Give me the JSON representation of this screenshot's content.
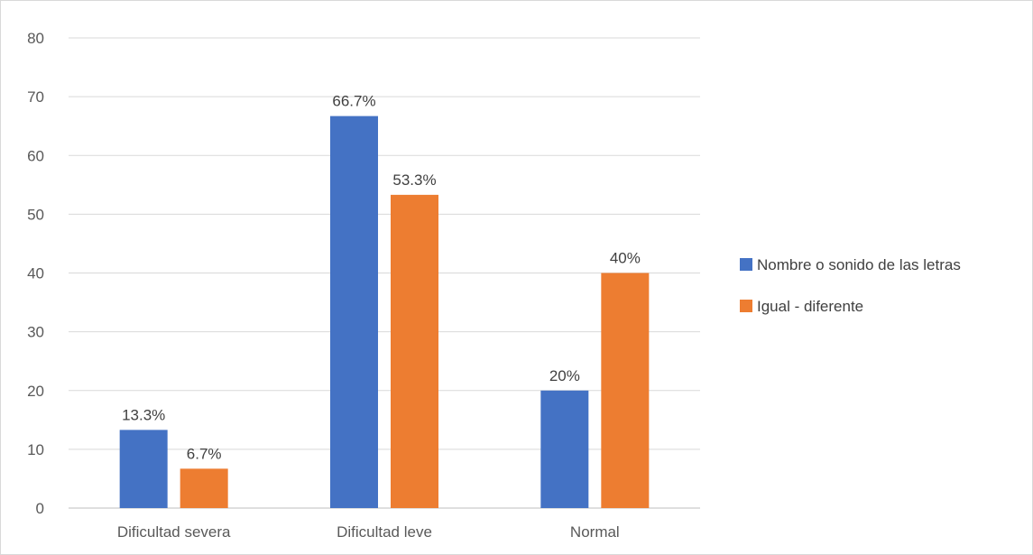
{
  "chart_data": {
    "type": "bar",
    "title": "",
    "xlabel": "",
    "ylabel": "",
    "categories": [
      "Dificultad severa",
      "Dificultad leve",
      "Normal"
    ],
    "ylim": [
      0,
      80
    ],
    "yticks": [
      0,
      10,
      20,
      30,
      40,
      50,
      60,
      70,
      80
    ],
    "grid": true,
    "legend_position": "right",
    "series": [
      {
        "name": "Nombre o sonido de las letras",
        "color": "#4472C4",
        "values": [
          13.3,
          66.7,
          20
        ],
        "labels": [
          "13.3%",
          "66.7%",
          "20%"
        ]
      },
      {
        "name": "Igual - diferente",
        "color": "#ED7D31",
        "values": [
          6.7,
          53.3,
          40
        ],
        "labels": [
          "6.7%",
          "53.3%",
          "40%"
        ]
      }
    ]
  }
}
